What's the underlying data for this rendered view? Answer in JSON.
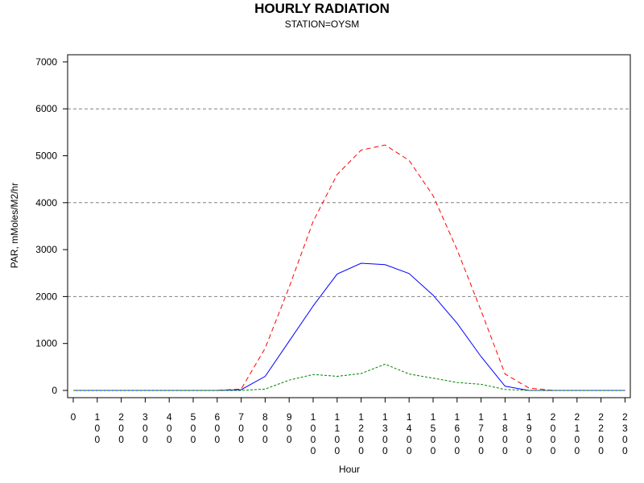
{
  "chart_data": {
    "type": "line",
    "title": "HOURLY RADIATION",
    "subtitle": "STATION=OYSM",
    "xlabel": "Hour",
    "ylabel": "PAR, mMoles/M2/hr",
    "ylim": [
      0,
      7000
    ],
    "yticks": [
      0,
      1000,
      2000,
      3000,
      4000,
      5000,
      6000,
      7000
    ],
    "ygrid": [
      2000,
      4000,
      6000
    ],
    "x": [
      0,
      100,
      200,
      300,
      400,
      500,
      600,
      700,
      800,
      900,
      1000,
      1100,
      1200,
      1300,
      1400,
      1500,
      1600,
      1700,
      1800,
      1900,
      2000,
      2100,
      2200,
      2300
    ],
    "xtick_labels": [
      "0",
      "100",
      "200",
      "300",
      "400",
      "500",
      "600",
      "700",
      "800",
      "900",
      "1000",
      "1100",
      "1200",
      "1300",
      "1400",
      "1500",
      "1600",
      "1700",
      "1800",
      "1900",
      "2000",
      "2100",
      "2200",
      "2300"
    ],
    "series": [
      {
        "color": "#ff0000",
        "style": "dashed-long",
        "values": [
          0,
          0,
          0,
          0,
          0,
          0,
          0,
          30,
          900,
          2200,
          3600,
          4600,
          5120,
          5230,
          4900,
          4150,
          3000,
          1700,
          350,
          50,
          0,
          0,
          0,
          0
        ]
      },
      {
        "color": "#0000ff",
        "style": "solid",
        "values": [
          0,
          0,
          0,
          0,
          0,
          0,
          0,
          15,
          300,
          1050,
          1800,
          2480,
          2710,
          2680,
          2490,
          2030,
          1430,
          720,
          90,
          0,
          0,
          0,
          0,
          0
        ]
      },
      {
        "color": "#008000",
        "style": "dashed-short",
        "values": [
          0,
          0,
          0,
          0,
          0,
          0,
          0,
          0,
          30,
          220,
          340,
          300,
          360,
          560,
          350,
          260,
          170,
          130,
          20,
          0,
          0,
          0,
          0,
          0
        ]
      }
    ]
  }
}
